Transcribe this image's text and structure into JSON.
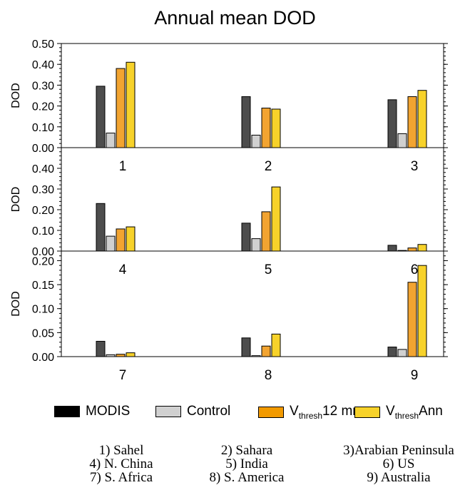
{
  "title": "Annual mean DOD",
  "chart_data": [
    {
      "type": "bar",
      "panel": "top",
      "ylabel": "DOD",
      "ylim": [
        0,
        0.5
      ],
      "yticks": [
        "0.00",
        "0.10",
        "0.20",
        "0.30",
        "0.40",
        "0.50"
      ],
      "categories": [
        "1",
        "2",
        "3"
      ],
      "series": [
        {
          "name": "MODIS",
          "values": [
            0.295,
            0.245,
            0.23
          ]
        },
        {
          "name": "Control",
          "values": [
            0.07,
            0.06,
            0.067
          ]
        },
        {
          "name": "Vthresh12mn",
          "values": [
            0.38,
            0.19,
            0.245
          ]
        },
        {
          "name": "VthreshAnn",
          "values": [
            0.41,
            0.185,
            0.275
          ]
        }
      ]
    },
    {
      "type": "bar",
      "panel": "middle",
      "ylabel": "DOD",
      "ylim": [
        0,
        0.5
      ],
      "yticks": [
        "0.00",
        "0.10",
        "0.20",
        "0.30",
        "0.40"
      ],
      "categories": [
        "4",
        "5",
        "6"
      ],
      "series": [
        {
          "name": "MODIS",
          "values": [
            0.23,
            0.135,
            0.028
          ]
        },
        {
          "name": "Control",
          "values": [
            0.072,
            0.06,
            0.003
          ]
        },
        {
          "name": "Vthresh12mn",
          "values": [
            0.107,
            0.19,
            0.015
          ]
        },
        {
          "name": "VthreshAnn",
          "values": [
            0.117,
            0.31,
            0.032
          ]
        }
      ]
    },
    {
      "type": "bar",
      "panel": "bottom",
      "ylabel": "DOD",
      "ylim": [
        0,
        0.22
      ],
      "yticks": [
        "0.00",
        "0.05",
        "0.10",
        "0.15",
        "0.20"
      ],
      "categories": [
        "7",
        "8",
        "9"
      ],
      "series": [
        {
          "name": "MODIS",
          "values": [
            0.032,
            0.039,
            0.02
          ]
        },
        {
          "name": "Control",
          "values": [
            0.004,
            0.002,
            0.015
          ]
        },
        {
          "name": "Vthresh12mn",
          "values": [
            0.005,
            0.022,
            0.155
          ]
        },
        {
          "name": "VthreshAnn",
          "values": [
            0.008,
            0.047,
            0.19
          ]
        }
      ]
    }
  ],
  "legend": {
    "items": [
      {
        "label": "MODIS",
        "sub": "",
        "tail": "",
        "color": "#4d4d4d"
      },
      {
        "label": "Control",
        "sub": "",
        "tail": "",
        "color": "#d0d0d0"
      },
      {
        "label": "V",
        "sub": "thresh",
        "tail": "12 mn",
        "color": "#f2a431"
      },
      {
        "label": "V",
        "sub": "thresh",
        "tail": "Ann",
        "color": "#f7d22a"
      }
    ]
  },
  "regions": [
    "1) Sahel",
    "2) Sahara",
    "3)Arabian Peninsula",
    "4) N. China",
    "5) India",
    "6) US",
    "7) S. Africa",
    "8) S. America",
    "9) Australia"
  ],
  "colors": {
    "MODIS": "#4d4d4d",
    "Control": "#d0d0d0",
    "Vthresh12mn": "#f2a431",
    "VthreshAnn": "#f7d22a"
  }
}
